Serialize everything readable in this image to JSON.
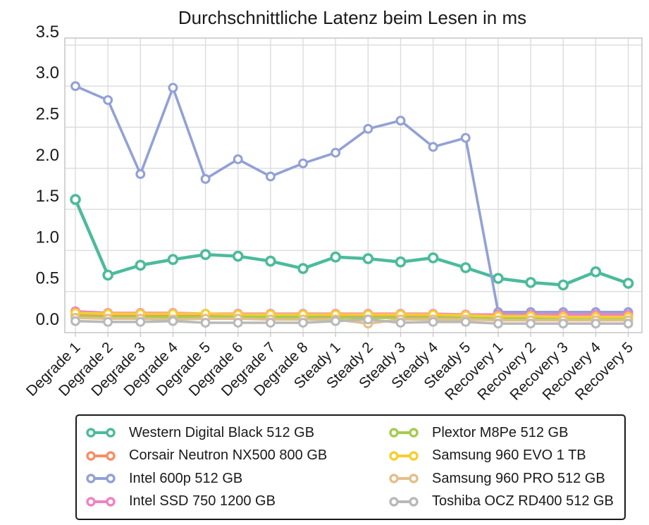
{
  "chart_data": {
    "type": "line",
    "title": "Durchschnittliche Latenz beim Lesen in ms",
    "xlabel": "",
    "ylabel": "",
    "ylim": [
      0,
      3.5
    ],
    "ytick_step": 0.5,
    "ytick_labels": [
      "0.0",
      "0.5",
      "1.0",
      "1.5",
      "2.0",
      "2.5",
      "3.0",
      "3.5"
    ],
    "grid": true,
    "legend_position": "bottom",
    "categories": [
      "Degrade 1",
      "Degrade 2",
      "Degrade 3",
      "Degrade 4",
      "Degrade 5",
      "Degrade 6",
      "Degrade 7",
      "Degrade 8",
      "Steady 1",
      "Steady 2",
      "Steady 3",
      "Steady 4",
      "Steady 5",
      "Recovery 1",
      "Recovery 2",
      "Recovery 3",
      "Recovery 4",
      "Recovery 5"
    ],
    "series": [
      {
        "name": "Western Digital Black 512 GB",
        "color": "#4CBB9B",
        "values": [
          1.62,
          0.7,
          0.82,
          0.89,
          0.95,
          0.93,
          0.87,
          0.78,
          0.92,
          0.9,
          0.86,
          0.91,
          0.79,
          0.66,
          0.61,
          0.58,
          0.74,
          0.6
        ]
      },
      {
        "name": "Corsair Neutron NX500 800 GB",
        "color": "#F88E62",
        "values": [
          0.22,
          0.22,
          0.22,
          0.22,
          0.22,
          0.21,
          0.21,
          0.21,
          0.21,
          0.21,
          0.21,
          0.21,
          0.21,
          0.21,
          0.21,
          0.21,
          0.21,
          0.21
        ]
      },
      {
        "name": "Intel 600p 512 GB",
        "color": "#92A1D6",
        "values": [
          3.0,
          2.83,
          1.93,
          2.98,
          1.87,
          2.11,
          1.9,
          2.06,
          2.19,
          2.48,
          2.58,
          2.26,
          2.37,
          0.25,
          0.25,
          0.25,
          0.25,
          0.25
        ]
      },
      {
        "name": "Intel SSD 750 1200 GB",
        "color": "#EF82C3",
        "values": [
          0.26,
          0.24,
          0.24,
          0.24,
          0.23,
          0.23,
          0.23,
          0.23,
          0.23,
          0.23,
          0.23,
          0.23,
          0.22,
          0.22,
          0.22,
          0.22,
          0.22,
          0.22
        ]
      },
      {
        "name": "Plextor M8Pe 512 GB",
        "color": "#A5CC4F",
        "values": [
          0.2,
          0.19,
          0.19,
          0.19,
          0.19,
          0.19,
          0.19,
          0.19,
          0.18,
          0.18,
          0.18,
          0.18,
          0.18,
          0.17,
          0.17,
          0.17,
          0.17,
          0.17
        ]
      },
      {
        "name": "Samsung 960 EVO 1 TB",
        "color": "#F6CE30",
        "values": [
          0.24,
          0.23,
          0.23,
          0.23,
          0.23,
          0.22,
          0.22,
          0.22,
          0.22,
          0.22,
          0.22,
          0.22,
          0.21,
          0.2,
          0.2,
          0.19,
          0.19,
          0.19
        ]
      },
      {
        "name": "Samsung 960 PRO 512 GB",
        "color": "#E2BF8B",
        "values": [
          0.18,
          0.17,
          0.17,
          0.16,
          0.17,
          0.17,
          0.16,
          0.16,
          0.16,
          0.11,
          0.16,
          0.16,
          0.16,
          0.15,
          0.15,
          0.15,
          0.15,
          0.15
        ]
      },
      {
        "name": "Toshiba OCZ RD400 512 GB",
        "color": "#B9B9B9",
        "values": [
          0.14,
          0.13,
          0.13,
          0.14,
          0.12,
          0.12,
          0.12,
          0.12,
          0.14,
          0.16,
          0.12,
          0.13,
          0.13,
          0.11,
          0.11,
          0.11,
          0.11,
          0.11
        ]
      }
    ]
  },
  "colors": {
    "grid": "#DCDCDC",
    "plot_border": "#C9C9C9",
    "text": "#1a1a1a",
    "background": "#ffffff"
  }
}
